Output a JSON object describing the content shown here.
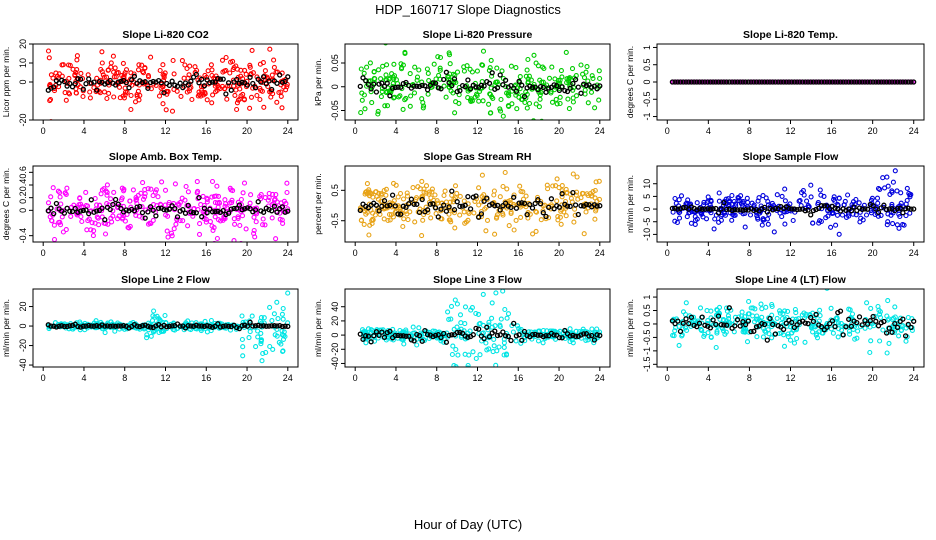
{
  "figure": {
    "title": "HDP_160717  Slope Diagnostics",
    "xlabel": "Hour of Day (UTC)"
  },
  "chart_data": [
    {
      "type": "scatter",
      "title": "Slope Li-820 CO2",
      "ylabel": "Licor ppm per min.",
      "xlim": [
        -1,
        25
      ],
      "ylim": [
        -20,
        20
      ],
      "xticks": [
        0,
        4,
        8,
        12,
        16,
        20,
        24
      ],
      "yticks": [
        -20,
        0,
        10,
        20
      ],
      "color": "#ff0000",
      "hours": [
        0.5,
        24
      ],
      "spread": 6,
      "black_spread": 3
    },
    {
      "type": "scatter",
      "title": "Slope Li-820 Pressure",
      "ylabel": "kPa per min.",
      "xlim": [
        -1,
        25
      ],
      "ylim": [
        -0.07,
        0.09
      ],
      "xticks": [
        0,
        4,
        8,
        12,
        16,
        20,
        24
      ],
      "yticks": [
        -0.05,
        0,
        0.05
      ],
      "color": "#00cc00",
      "hours": [
        0.5,
        24
      ],
      "spread": 0.03,
      "black_spread": 0.015
    },
    {
      "type": "scatter",
      "title": "Slope Li-820 Temp.",
      "ylabel": "degrees C per min.",
      "xlim": [
        -1,
        25
      ],
      "ylim": [
        -1.1,
        1.1
      ],
      "xticks": [
        0,
        4,
        8,
        12,
        16,
        20,
        24
      ],
      "yticks": [
        -1,
        -0.5,
        0,
        0.5,
        1
      ],
      "color": "#ff00ff",
      "hours": [
        0.5,
        24
      ],
      "spread": 0,
      "black_spread": 0
    },
    {
      "type": "scatter",
      "title": "Slope Amb. Box Temp.",
      "ylabel": "degrees C per min.",
      "xlim": [
        -1,
        25
      ],
      "ylim": [
        -0.5,
        0.7
      ],
      "xticks": [
        0,
        4,
        8,
        12,
        16,
        20,
        24
      ],
      "yticks": [
        -0.4,
        0,
        0.2,
        0.4,
        0.6
      ],
      "color": "#ff00ff",
      "hours": [
        0.5,
        24
      ],
      "spread": 0.2,
      "black_spread": 0.1
    },
    {
      "type": "scatter",
      "title": "Slope Gas Stream RH",
      "ylabel": "percent per min.",
      "xlim": [
        -1,
        25
      ],
      "ylim": [
        -1.2,
        1.3
      ],
      "xticks": [
        0,
        4,
        8,
        12,
        16,
        20,
        24
      ],
      "yticks": [
        -0.5,
        0.5
      ],
      "color": "#e8a317",
      "hours": [
        0.5,
        24
      ],
      "spread": 0.4,
      "black_spread": 0.25
    },
    {
      "type": "scatter",
      "title": "Slope Sample Flow",
      "ylabel": "ml/min per min.",
      "xlim": [
        -1,
        25
      ],
      "ylim": [
        -13,
        17
      ],
      "xticks": [
        0,
        4,
        8,
        12,
        16,
        20,
        24
      ],
      "yticks": [
        -10,
        -5,
        0,
        5,
        10
      ],
      "color": "#0000dd",
      "hours": [
        0.5,
        24
      ],
      "spread": 3,
      "black_spread": 1
    },
    {
      "type": "scatter",
      "title": "Slope Line 2 Flow",
      "ylabel": "ml/min per min.",
      "xlim": [
        -1,
        25
      ],
      "ylim": [
        -42,
        38
      ],
      "xticks": [
        0,
        4,
        8,
        12,
        16,
        20,
        24
      ],
      "yticks": [
        -40,
        -20,
        0,
        20
      ],
      "color": "#00e5e5",
      "hours": [
        0.5,
        24
      ],
      "spread": 2,
      "black_spread": 1
    },
    {
      "type": "scatter",
      "title": "Slope Line 3 Flow",
      "ylabel": "ml/min per min.",
      "xlim": [
        -1,
        25
      ],
      "ylim": [
        -45,
        65
      ],
      "xticks": [
        0,
        4,
        8,
        12,
        16,
        20,
        24
      ],
      "yticks": [
        -40,
        -20,
        0,
        20,
        40
      ],
      "color": "#00e5e5",
      "hours": [
        0.5,
        24
      ],
      "spread": 5,
      "black_spread": 5
    },
    {
      "type": "scatter",
      "title": "Slope Line 4 (LT) Flow",
      "ylabel": "ml/min per min.",
      "xlim": [
        -1,
        25
      ],
      "ylim": [
        -1.6,
        1.3
      ],
      "xticks": [
        0,
        4,
        8,
        12,
        16,
        20,
        24
      ],
      "yticks": [
        -1.5,
        -1,
        -0.5,
        0,
        0.5,
        1
      ],
      "color": "#00e5e5",
      "hours": [
        0.5,
        24
      ],
      "spread": 0.35,
      "black_spread": 0.3
    }
  ]
}
